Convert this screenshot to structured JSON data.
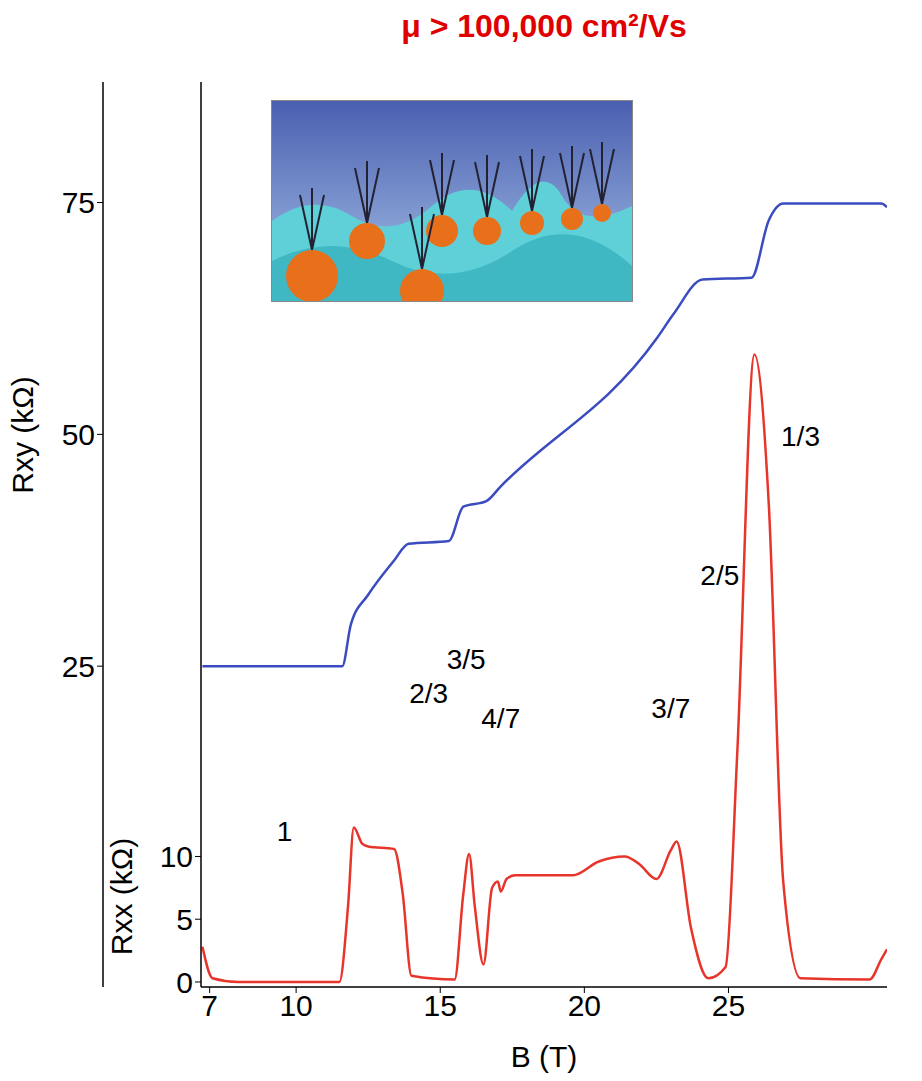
{
  "chart_data": {
    "type": "line",
    "title": "μ > 100,000 cm²/Vs",
    "x_label": "B (T)",
    "y_label": "Rxx (kΩ)",
    "y2_label": "Rxy (kΩ)",
    "xlim": [
      6.7,
      30.5
    ],
    "xticks": [
      7,
      10,
      15,
      20,
      25
    ],
    "ylim": [
      -0.4,
      71.7
    ],
    "yticks": [
      0,
      5,
      10
    ],
    "y2lim": [
      -9.6,
      88
    ],
    "y2ticks": [
      25,
      50,
      75
    ],
    "grid": false,
    "series": [
      {
        "name": "Rxy",
        "color": "#3b4cc0",
        "axis": "y2",
        "x": [
          6.75,
          11.6,
          11.9,
          12.5,
          13.4,
          13.9,
          15.3,
          15.8,
          16.6,
          17.1,
          22.5,
          23.1,
          24.1,
          25.8,
          26.4,
          26.9,
          30.3,
          30.5
        ],
        "values": [
          25,
          25,
          29.5,
          32.7,
          36.4,
          38.2,
          38.5,
          42.2,
          42.8,
          44.4,
          60.3,
          63,
          66.7,
          66.9,
          73.1,
          74.9,
          74.9,
          74.5
        ]
      },
      {
        "name": "Rxx",
        "color": "#e8352b",
        "axis": "y",
        "x": [
          6.75,
          7.1,
          8,
          11.5,
          11.8,
          12.0,
          12.3,
          12.5,
          13.4,
          13.7,
          14.0,
          15.5,
          15.8,
          16.0,
          16.2,
          16.5,
          16.8,
          17.0,
          17.1,
          17.3,
          17.6,
          19.6,
          20.5,
          21.4,
          21.9,
          22.5,
          23.0,
          23.2,
          23.7,
          24.3,
          24.9,
          25.3,
          25.9,
          26.4,
          26.9,
          27.5,
          29.9,
          30.3,
          30.5
        ],
        "values": [
          2.8,
          0.3,
          0,
          0,
          6,
          12.3,
          11.0,
          10.8,
          10.6,
          7,
          0.5,
          0.2,
          7,
          10.2,
          6,
          1.4,
          7.5,
          8.0,
          7.2,
          8.2,
          8.5,
          8.5,
          9.6,
          10.0,
          9.4,
          8.2,
          10.5,
          11.2,
          4.3,
          0.3,
          1.2,
          18,
          50,
          38,
          8,
          0.3,
          0.2,
          1.8,
          2.6
        ]
      }
    ],
    "annotations": [
      {
        "text": "1",
        "x": 9.6,
        "y": 12
      },
      {
        "text": "2/3",
        "x": 14.6,
        "y": 23
      },
      {
        "text": "3/5",
        "x": 15.9,
        "y": 25.7
      },
      {
        "text": "4/7",
        "x": 17.1,
        "y": 21
      },
      {
        "text": "3/7",
        "x": 23.0,
        "y": 21.8
      },
      {
        "text": "2/5",
        "x": 24.7,
        "y": 32.4
      },
      {
        "text": "1/3",
        "x": 27.5,
        "y": 43.5
      }
    ]
  }
}
